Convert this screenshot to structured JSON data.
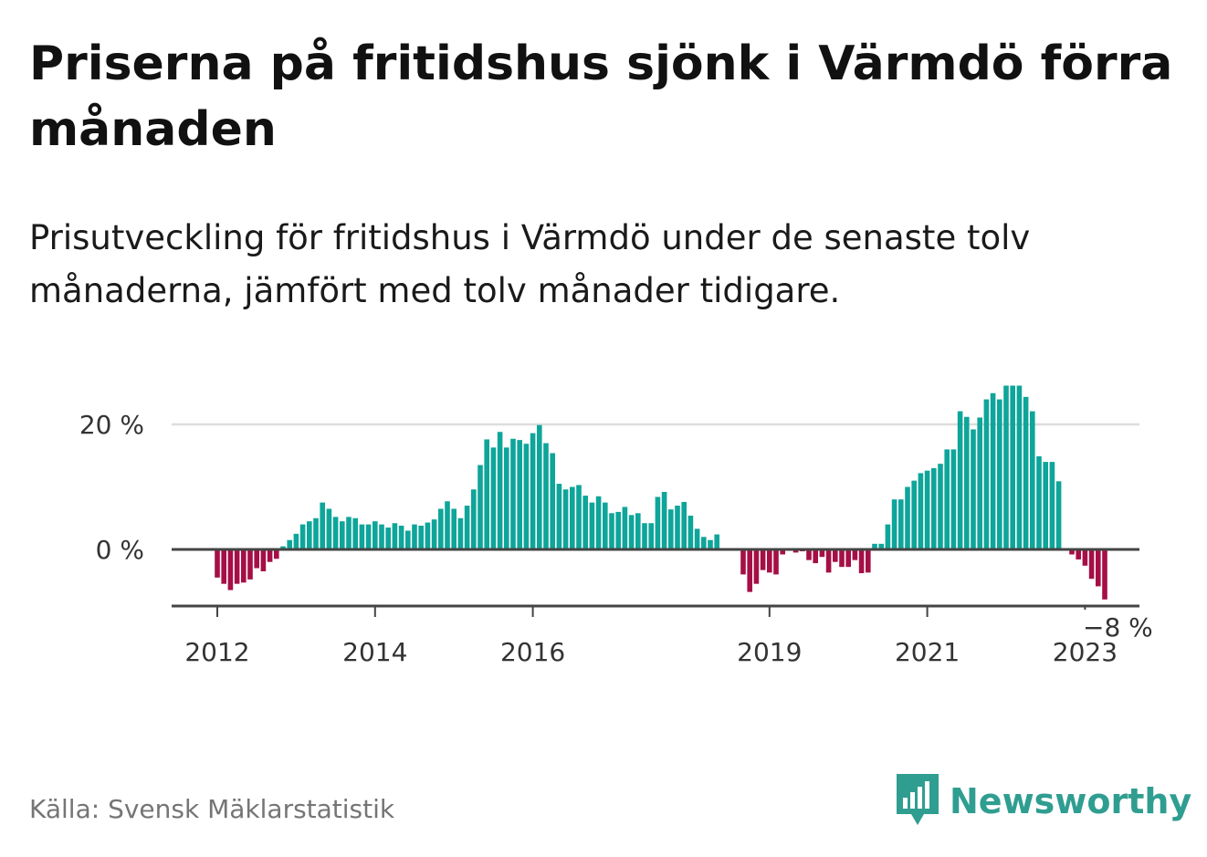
{
  "header": {
    "title": "Priserna på fritidshus sjönk i Värmdö förra månaden",
    "subtitle": "Prisutveckling för fritidshus i Värmdö under de senaste tolv månaderna, jämfört med tolv månader tidigare."
  },
  "footer": {
    "source": "Källa: Svensk Mäklarstatistik",
    "brand": "Newsworthy"
  },
  "colors": {
    "positive": "#0ea59a",
    "negative": "#a50f45",
    "brand": "#2f9e91"
  },
  "chart_data": {
    "type": "bar",
    "title": "Priserna på fritidshus sjönk i Värmdö förra månaden",
    "subtitle": "Prisutveckling för fritidshus i Värmdö under de senaste tolv månaderna, jämfört med tolv månader tidigare.",
    "xlabel": "",
    "ylabel": "",
    "grid": true,
    "ylim": [
      -9,
      27
    ],
    "y_ticks": [
      {
        "value": 0,
        "label": "0 %"
      },
      {
        "value": 20,
        "label": "20 %"
      }
    ],
    "x_ticks": [
      {
        "index": 0,
        "label": "2012"
      },
      {
        "index": 24,
        "label": "2014"
      },
      {
        "index": 48,
        "label": "2016"
      },
      {
        "index": 84,
        "label": "2019"
      },
      {
        "index": 108,
        "label": "2021"
      },
      {
        "index": 132,
        "label": "2023"
      }
    ],
    "start": "2012-01",
    "frequency": "monthly",
    "values": [
      -4.5,
      -5.5,
      -6.5,
      -5.5,
      -5.3,
      -4.8,
      -3.0,
      -3.5,
      -2.0,
      -1.5,
      0.5,
      1.5,
      2.5,
      4.0,
      4.5,
      5.0,
      7.5,
      6.5,
      5.2,
      4.5,
      5.2,
      5.0,
      4.0,
      4.0,
      4.5,
      4.0,
      3.5,
      4.2,
      3.8,
      3.0,
      4.0,
      3.8,
      4.3,
      4.8,
      6.5,
      7.7,
      6.5,
      5.0,
      7.0,
      9.6,
      13.5,
      17.6,
      16.3,
      18.8,
      16.3,
      17.7,
      17.5,
      16.9,
      18.6,
      19.9,
      17.0,
      15.4,
      10.5,
      9.6,
      10.0,
      10.3,
      8.6,
      7.5,
      8.5,
      7.5,
      5.8,
      6.0,
      6.8,
      5.5,
      5.8,
      4.2,
      4.2,
      8.4,
      9.2,
      6.4,
      7.0,
      7.6,
      5.4,
      3.3,
      2.0,
      1.5,
      2.4,
      null,
      null,
      null,
      -4.0,
      -6.8,
      -5.5,
      -3.3,
      -3.7,
      -4.0,
      -0.8,
      null,
      -0.5,
      -0.3,
      -1.7,
      -2.2,
      -1.2,
      -3.7,
      -2.0,
      -2.8,
      -2.8,
      -1.7,
      -3.8,
      -3.7,
      0.9,
      0.9,
      4.0,
      8.0,
      8.0,
      10.0,
      11.0,
      12.2,
      12.6,
      13.0,
      13.7,
      16.0,
      16.0,
      22.1,
      21.2,
      19.2,
      21.1,
      24.0,
      25.0,
      24.0,
      26.2,
      26.2,
      26.2,
      24.4,
      22.1,
      14.9,
      14.0,
      14.0,
      10.9,
      null,
      -0.8,
      -1.6,
      -2.6,
      -4.7,
      -5.9,
      -8.0
    ],
    "annotations": [
      {
        "index": 137,
        "label": "−8 %"
      }
    ]
  }
}
